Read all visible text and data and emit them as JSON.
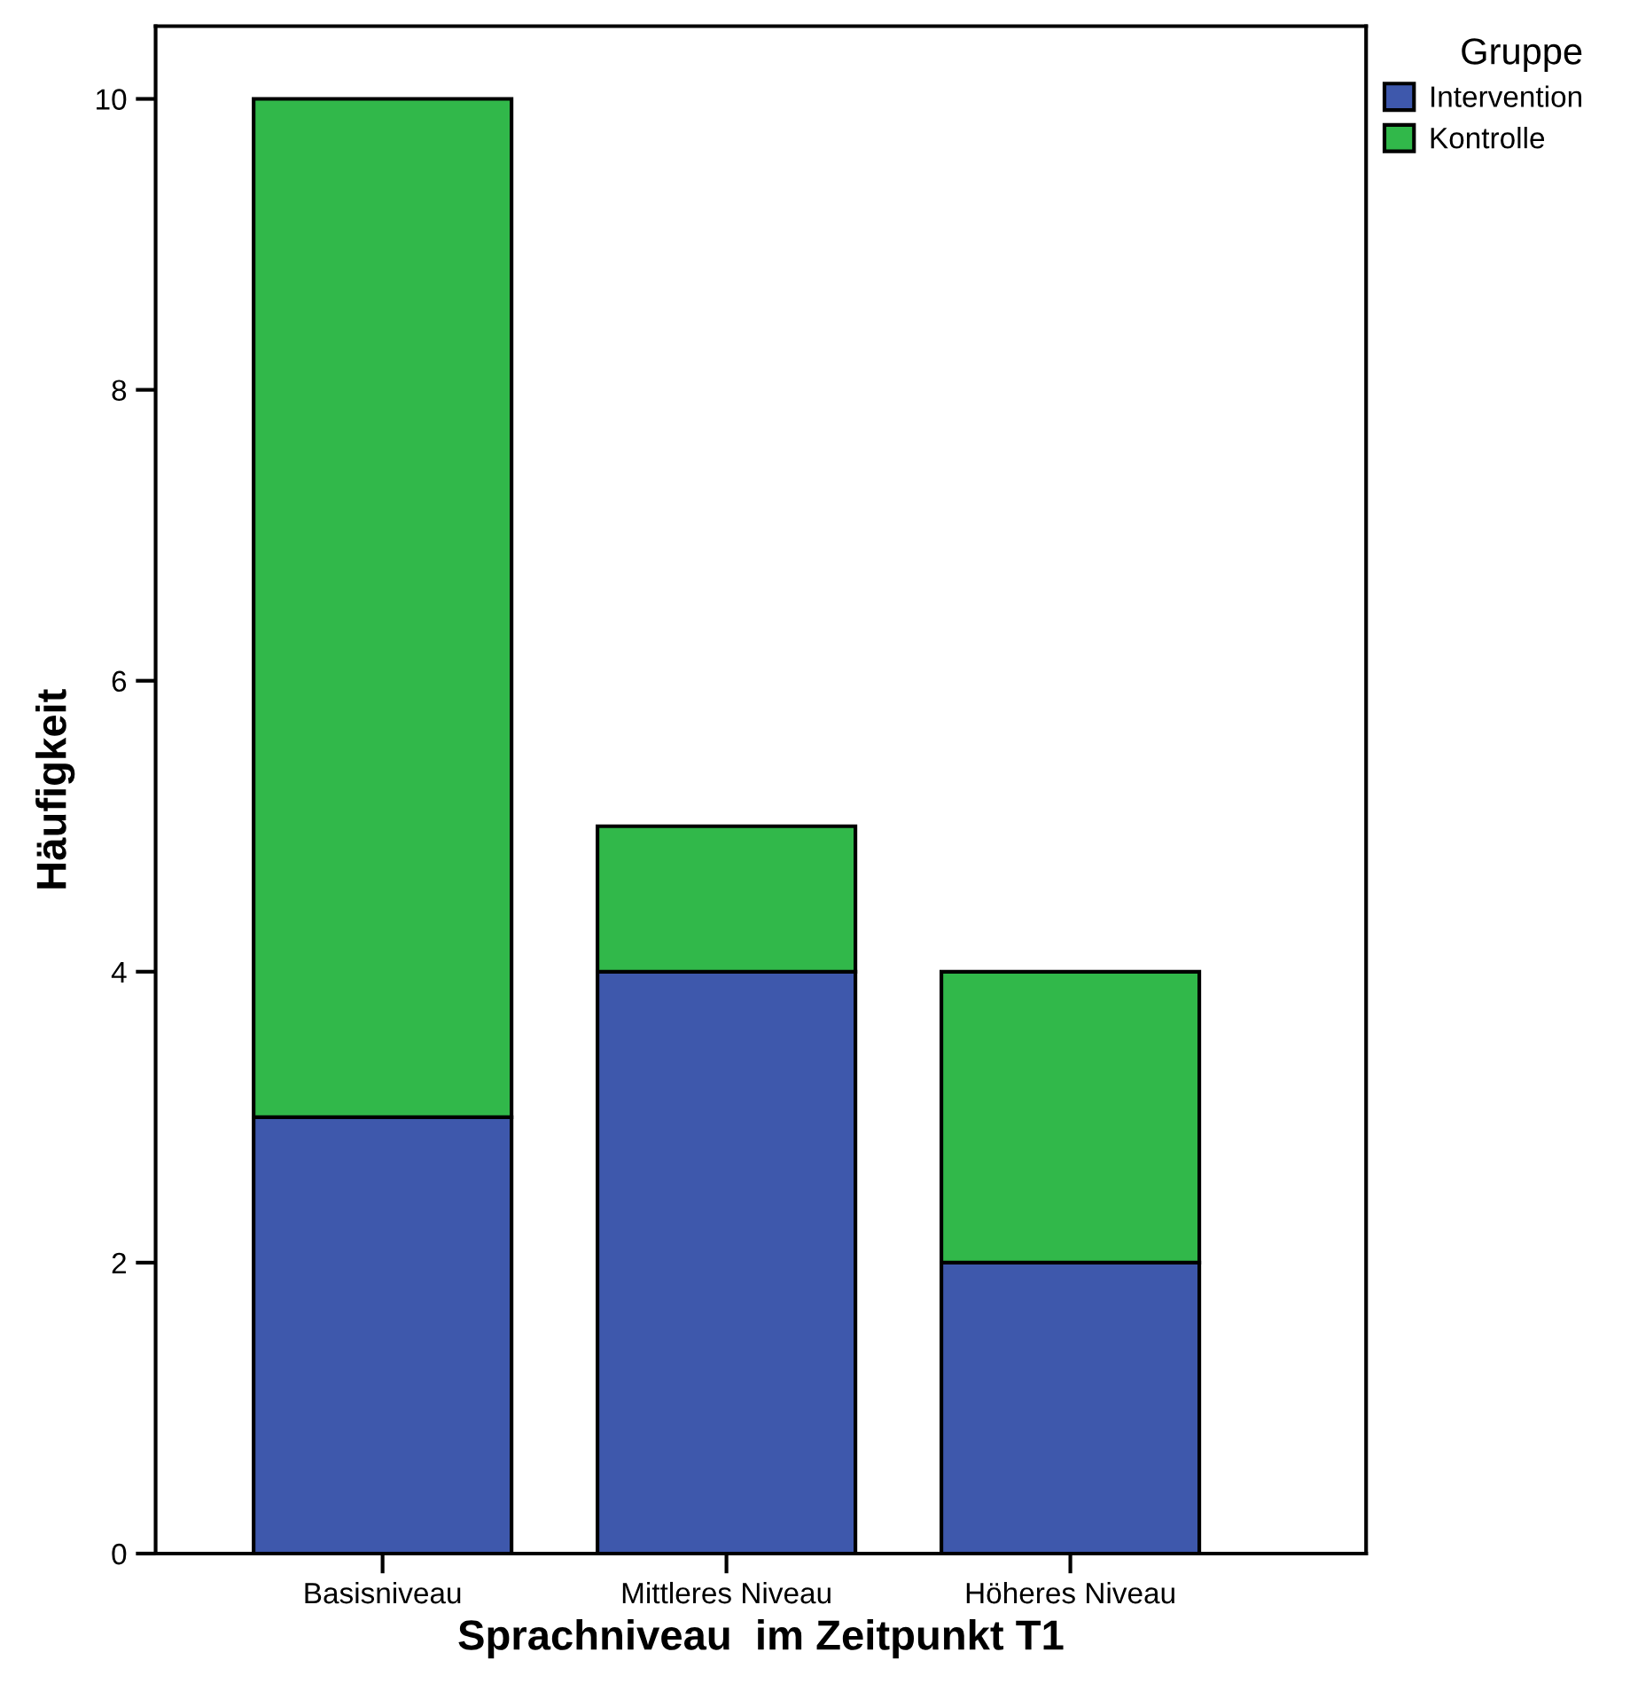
{
  "chart_data": {
    "type": "bar",
    "stacked": true,
    "xlabel": "Sprachniveau  im Zeitpunkt T1",
    "ylabel": "Häufigkeit",
    "legend_title": "Gruppe",
    "categories": [
      "Basisniveau",
      "Mittleres Niveau",
      "Höheres Niveau"
    ],
    "series": [
      {
        "name": "Intervention",
        "color": "#3e58ac",
        "values": [
          3,
          4,
          2
        ]
      },
      {
        "name": "Kontrolle",
        "color": "#31b84a",
        "values": [
          7,
          1,
          2
        ]
      }
    ],
    "ylim": [
      0,
      10.5
    ],
    "yticks": [
      0,
      2,
      4,
      6,
      8,
      10
    ],
    "grid": false,
    "legend": "top right"
  }
}
